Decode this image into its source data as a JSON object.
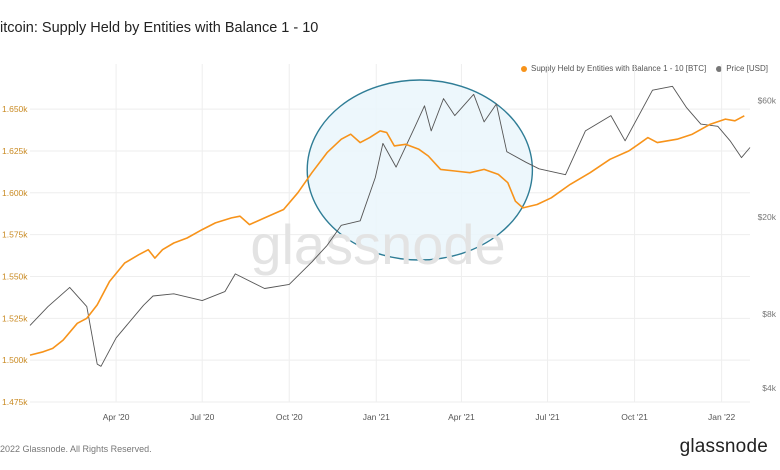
{
  "header": {
    "title": "itcoin: Supply Held by Entities with Balance 1 - 10"
  },
  "footer": {
    "copyright": "2022 Glassnode. All Rights Reserved.",
    "logo": "glassnode",
    "watermark": "glassnode"
  },
  "colors": {
    "supply": "#f7931a",
    "price": "#555555",
    "ellipse_fill": "#eaf6fb",
    "ellipse_stroke": "#2f7d96",
    "grid": "#eeeeee"
  },
  "chart_data": {
    "type": "line",
    "title": "itcoin: Supply Held by Entities with Balance 1 - 10",
    "left_axis": {
      "min": 1475000,
      "max": 1665000,
      "ticks": [
        1475000,
        1500000,
        1525000,
        1550000,
        1575000,
        1600000,
        1625000,
        1650000
      ],
      "tick_labels": [
        "1.475k",
        "1.500k",
        "1.525k",
        "1.550k",
        "1.575k",
        "1.600k",
        "1.625k",
        "1.650k"
      ]
    },
    "right_axis": {
      "scale": "log",
      "min": 3500,
      "max": 70000,
      "ticks": [
        4000,
        8000,
        20000,
        60000
      ],
      "tick_labels": [
        "$4k",
        "$8k",
        "$20k",
        "$60k"
      ]
    },
    "x_axis": {
      "start": "2020-01-01",
      "end": "2022-01-31",
      "ticks": [
        "2020-04-01",
        "2020-07-01",
        "2020-10-01",
        "2021-01-01",
        "2021-04-01",
        "2021-07-01",
        "2021-10-01",
        "2022-01-01"
      ],
      "tick_labels": [
        "Apr '20",
        "Jul '20",
        "Oct '20",
        "Jan '21",
        "Apr '21",
        "Jul '21",
        "Oct '21",
        "Jan '22"
      ]
    },
    "grid": true,
    "legend_position": "top-right",
    "annotation": {
      "shape": "ellipse",
      "from": "2020-10-20",
      "to": "2021-06-15"
    },
    "series": [
      {
        "name": "Supply Held by Entities with Balance 1 - 10 [BTC]",
        "axis": "left",
        "color": "#f7931a",
        "points": [
          [
            "2020-01-01",
            1503000
          ],
          [
            "2020-01-15",
            1505000
          ],
          [
            "2020-01-25",
            1507000
          ],
          [
            "2020-02-05",
            1512000
          ],
          [
            "2020-02-20",
            1522000
          ],
          [
            "2020-03-01",
            1525000
          ],
          [
            "2020-03-12",
            1533000
          ],
          [
            "2020-03-25",
            1547000
          ],
          [
            "2020-04-10",
            1558000
          ],
          [
            "2020-04-25",
            1563000
          ],
          [
            "2020-05-05",
            1566000
          ],
          [
            "2020-05-12",
            1561000
          ],
          [
            "2020-05-20",
            1566000
          ],
          [
            "2020-06-01",
            1570000
          ],
          [
            "2020-06-15",
            1573000
          ],
          [
            "2020-07-01",
            1578000
          ],
          [
            "2020-07-15",
            1582000
          ],
          [
            "2020-08-01",
            1585000
          ],
          [
            "2020-08-10",
            1586000
          ],
          [
            "2020-08-20",
            1581000
          ],
          [
            "2020-09-05",
            1585000
          ],
          [
            "2020-09-25",
            1590000
          ],
          [
            "2020-10-10",
            1600000
          ],
          [
            "2020-10-25",
            1612000
          ],
          [
            "2020-11-10",
            1624000
          ],
          [
            "2020-11-25",
            1632000
          ],
          [
            "2020-12-05",
            1635000
          ],
          [
            "2020-12-15",
            1630000
          ],
          [
            "2020-12-25",
            1633000
          ],
          [
            "2021-01-05",
            1637000
          ],
          [
            "2021-01-12",
            1636000
          ],
          [
            "2021-01-20",
            1628000
          ],
          [
            "2021-02-01",
            1629000
          ],
          [
            "2021-02-15",
            1626000
          ],
          [
            "2021-02-25",
            1622000
          ],
          [
            "2021-03-10",
            1614000
          ],
          [
            "2021-03-25",
            1613000
          ],
          [
            "2021-04-10",
            1612000
          ],
          [
            "2021-04-25",
            1614000
          ],
          [
            "2021-05-10",
            1611000
          ],
          [
            "2021-05-20",
            1606000
          ],
          [
            "2021-05-28",
            1595000
          ],
          [
            "2021-06-05",
            1591000
          ],
          [
            "2021-06-20",
            1593000
          ],
          [
            "2021-07-05",
            1597000
          ],
          [
            "2021-07-25",
            1605000
          ],
          [
            "2021-08-15",
            1612000
          ],
          [
            "2021-09-05",
            1620000
          ],
          [
            "2021-09-25",
            1625000
          ],
          [
            "2021-10-05",
            1629000
          ],
          [
            "2021-10-15",
            1633000
          ],
          [
            "2021-10-25",
            1630000
          ],
          [
            "2021-11-15",
            1632000
          ],
          [
            "2021-12-01",
            1635000
          ],
          [
            "2021-12-20",
            1641000
          ],
          [
            "2022-01-05",
            1644000
          ],
          [
            "2022-01-15",
            1643000
          ],
          [
            "2022-01-25",
            1646000
          ]
        ]
      },
      {
        "name": "Price [USD]",
        "axis": "right",
        "color": "#555555",
        "points": [
          [
            "2020-01-01",
            7200
          ],
          [
            "2020-01-20",
            8600
          ],
          [
            "2020-02-12",
            10300
          ],
          [
            "2020-03-01",
            8600
          ],
          [
            "2020-03-12",
            5000
          ],
          [
            "2020-03-16",
            4900
          ],
          [
            "2020-04-01",
            6400
          ],
          [
            "2020-04-30",
            8700
          ],
          [
            "2020-05-10",
            9500
          ],
          [
            "2020-06-01",
            9700
          ],
          [
            "2020-07-01",
            9100
          ],
          [
            "2020-07-25",
            9900
          ],
          [
            "2020-08-05",
            11700
          ],
          [
            "2020-09-05",
            10200
          ],
          [
            "2020-10-01",
            10600
          ],
          [
            "2020-10-25",
            13100
          ],
          [
            "2020-11-10",
            15300
          ],
          [
            "2020-11-25",
            18500
          ],
          [
            "2020-12-15",
            19300
          ],
          [
            "2020-12-31",
            29000
          ],
          [
            "2021-01-08",
            40000
          ],
          [
            "2021-01-22",
            32000
          ],
          [
            "2021-02-10",
            46000
          ],
          [
            "2021-02-21",
            57000
          ],
          [
            "2021-02-28",
            45000
          ],
          [
            "2021-03-13",
            61000
          ],
          [
            "2021-03-25",
            52000
          ],
          [
            "2021-04-14",
            63500
          ],
          [
            "2021-04-25",
            49000
          ],
          [
            "2021-05-08",
            58000
          ],
          [
            "2021-05-19",
            37000
          ],
          [
            "2021-06-08",
            33500
          ],
          [
            "2021-06-22",
            31500
          ],
          [
            "2021-07-20",
            29800
          ],
          [
            "2021-08-10",
            45000
          ],
          [
            "2021-09-06",
            52000
          ],
          [
            "2021-09-21",
            41000
          ],
          [
            "2021-10-20",
            66000
          ],
          [
            "2021-11-10",
            68500
          ],
          [
            "2021-11-25",
            56000
          ],
          [
            "2021-12-10",
            48000
          ],
          [
            "2021-12-28",
            47000
          ],
          [
            "2022-01-10",
            41000
          ],
          [
            "2022-01-22",
            35000
          ],
          [
            "2022-01-31",
            38500
          ]
        ]
      }
    ]
  }
}
